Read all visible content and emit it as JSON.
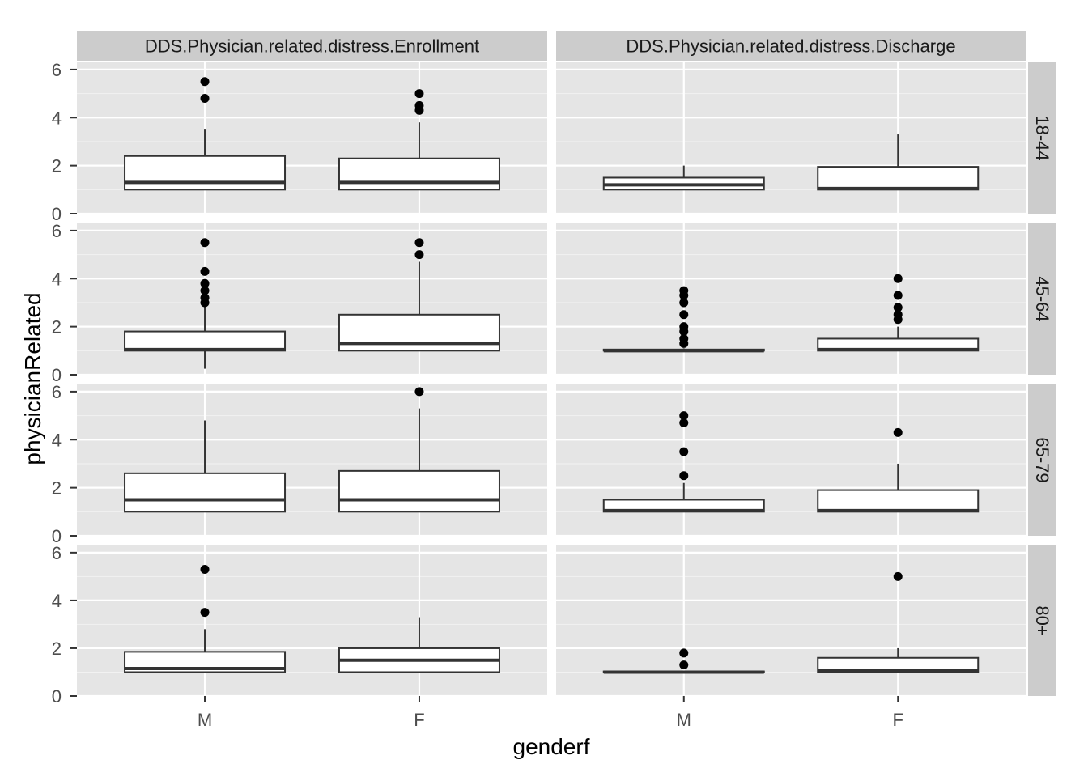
{
  "chart_data": {
    "type": "box",
    "xlabel": "genderf",
    "ylabel": "physicianRelated",
    "categories": [
      "M",
      "F"
    ],
    "col_facets": [
      "DDS.Physician.related.distress.Enrollment",
      "DDS.Physician.related.distress.Discharge"
    ],
    "row_facets": [
      "18-44",
      "45-64",
      "65-79",
      "80+"
    ],
    "y_ticks": [
      0,
      2,
      4,
      6
    ],
    "ylim": [
      0,
      6.3
    ],
    "grid": true,
    "colors": {
      "panel_bg": "#e5e5e5",
      "strip_bg": "#cccccc",
      "grid_major": "#ffffff",
      "grid_minor": "#f2f2f2",
      "box_fill": "#ffffff",
      "box_line": "#333333",
      "outlier": "#000000"
    },
    "panels": [
      {
        "row": "18-44",
        "col": "DDS.Physician.related.distress.Enrollment",
        "boxes": [
          {
            "category": "M",
            "min": 1,
            "q1": 1,
            "median": 1.3,
            "q3": 2.4,
            "max": 3.5,
            "outliers": [
              4.8,
              5.5
            ]
          },
          {
            "category": "F",
            "min": 1,
            "q1": 1,
            "median": 1.3,
            "q3": 2.3,
            "max": 3.8,
            "outliers": [
              4.3,
              4.5,
              5.0
            ]
          }
        ]
      },
      {
        "row": "18-44",
        "col": "DDS.Physician.related.distress.Discharge",
        "boxes": [
          {
            "category": "M",
            "min": 1,
            "q1": 1,
            "median": 1.2,
            "q3": 1.5,
            "max": 2.0,
            "outliers": []
          },
          {
            "category": "F",
            "min": 1,
            "q1": 1,
            "median": 1.05,
            "q3": 1.95,
            "max": 3.3,
            "outliers": []
          }
        ]
      },
      {
        "row": "45-64",
        "col": "DDS.Physician.related.distress.Enrollment",
        "boxes": [
          {
            "category": "M",
            "min": 0.25,
            "q1": 1,
            "median": 1.05,
            "q3": 1.8,
            "max": 2.9,
            "outliers": [
              3.0,
              3.2,
              3.5,
              3.8,
              4.3,
              5.5
            ]
          },
          {
            "category": "F",
            "min": 1,
            "q1": 1,
            "median": 1.3,
            "q3": 2.5,
            "max": 4.7,
            "outliers": [
              5.0,
              5.5
            ]
          }
        ]
      },
      {
        "row": "45-64",
        "col": "DDS.Physician.related.distress.Discharge",
        "boxes": [
          {
            "category": "M",
            "min": 1,
            "q1": 1,
            "median": 1,
            "q3": 1.05,
            "max": 1.1,
            "outliers": [
              1.3,
              1.5,
              1.8,
              2.0,
              2.5,
              3.0,
              3.3,
              3.5
            ]
          },
          {
            "category": "F",
            "min": 1,
            "q1": 1,
            "median": 1.05,
            "q3": 1.5,
            "max": 2.0,
            "outliers": [
              2.3,
              2.5,
              2.8,
              3.3,
              4.0
            ]
          }
        ]
      },
      {
        "row": "65-79",
        "col": "DDS.Physician.related.distress.Enrollment",
        "boxes": [
          {
            "category": "M",
            "min": 1,
            "q1": 1,
            "median": 1.5,
            "q3": 2.6,
            "max": 4.8,
            "outliers": []
          },
          {
            "category": "F",
            "min": 1,
            "q1": 1,
            "median": 1.5,
            "q3": 2.7,
            "max": 5.3,
            "outliers": [
              6.0
            ]
          }
        ]
      },
      {
        "row": "65-79",
        "col": "DDS.Physician.related.distress.Discharge",
        "boxes": [
          {
            "category": "M",
            "min": 1,
            "q1": 1,
            "median": 1.05,
            "q3": 1.5,
            "max": 2.2,
            "outliers": [
              2.5,
              3.5,
              4.7,
              5.0
            ]
          },
          {
            "category": "F",
            "min": 1,
            "q1": 1,
            "median": 1.05,
            "q3": 1.9,
            "max": 3.0,
            "outliers": [
              4.3
            ]
          }
        ]
      },
      {
        "row": "80+",
        "col": "DDS.Physician.related.distress.Enrollment",
        "boxes": [
          {
            "category": "M",
            "min": 1,
            "q1": 1,
            "median": 1.15,
            "q3": 1.85,
            "max": 2.8,
            "outliers": [
              3.5,
              5.3
            ]
          },
          {
            "category": "F",
            "min": 1,
            "q1": 1,
            "median": 1.5,
            "q3": 2.0,
            "max": 3.3,
            "outliers": []
          }
        ]
      },
      {
        "row": "80+",
        "col": "DDS.Physician.related.distress.Discharge",
        "boxes": [
          {
            "category": "M",
            "min": 1,
            "q1": 1,
            "median": 1,
            "q3": 1.03,
            "max": 1.05,
            "outliers": [
              1.3,
              1.8
            ]
          },
          {
            "category": "F",
            "min": 1,
            "q1": 1,
            "median": 1.05,
            "q3": 1.6,
            "max": 2.0,
            "outliers": [
              5.0
            ]
          }
        ]
      }
    ]
  }
}
